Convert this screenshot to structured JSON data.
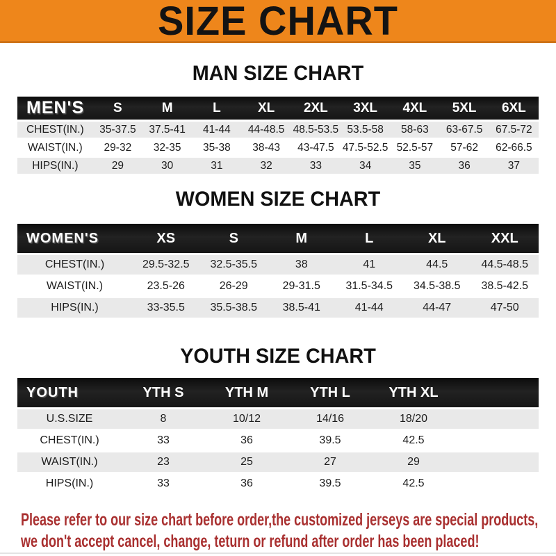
{
  "banner": {
    "title": "SIZE CHART"
  },
  "headings": {
    "men": "MAN SIZE CHART",
    "women": "WOMEN SIZE CHART",
    "youth": "YOUTH SIZE CHART"
  },
  "tables": {
    "men": {
      "group_label": "MEN'S",
      "sizes": [
        "S",
        "M",
        "L",
        "XL",
        "2XL",
        "3XL",
        "4XL",
        "5XL",
        "6XL"
      ],
      "rows": [
        {
          "label": "CHEST(IN.)",
          "values": [
            "35-37.5",
            "37.5-41",
            "41-44",
            "44-48.5",
            "48.5-53.5",
            "53.5-58",
            "58-63",
            "63-67.5",
            "67.5-72"
          ]
        },
        {
          "label": "WAIST(IN.)",
          "values": [
            "29-32",
            "32-35",
            "35-38",
            "38-43",
            "43-47.5",
            "47.5-52.5",
            "52.5-57",
            "57-62",
            "62-66.5"
          ]
        },
        {
          "label": "HIPS(IN.)",
          "values": [
            "29",
            "30",
            "31",
            "32",
            "33",
            "34",
            "35",
            "36",
            "37"
          ]
        }
      ]
    },
    "women": {
      "group_label": "WOMEN'S",
      "sizes": [
        "XS",
        "S",
        "M",
        "L",
        "XL",
        "XXL"
      ],
      "rows": [
        {
          "label": "CHEST(IN.)",
          "values": [
            "29.5-32.5",
            "32.5-35.5",
            "38",
            "41",
            "44.5",
            "44.5-48.5"
          ]
        },
        {
          "label": "WAIST(IN.)",
          "values": [
            "23.5-26",
            "26-29",
            "29-31.5",
            "31.5-34.5",
            "34.5-38.5",
            "38.5-42.5"
          ]
        },
        {
          "label": "HIPS(IN.)",
          "values": [
            "33-35.5",
            "35.5-38.5",
            "38.5-41",
            "41-44",
            "44-47",
            "47-50"
          ]
        }
      ]
    },
    "youth": {
      "group_label": "YOUTH",
      "sizes": [
        "YTH S",
        "YTH M",
        "YTH L",
        "YTH XL"
      ],
      "rows": [
        {
          "label": "U.S.SIZE",
          "values": [
            "8",
            "10/12",
            "14/16",
            "18/20"
          ]
        },
        {
          "label": "CHEST(IN.)",
          "values": [
            "33",
            "36",
            "39.5",
            "42.5"
          ]
        },
        {
          "label": "WAIST(IN.)",
          "values": [
            "23",
            "25",
            "27",
            "29"
          ]
        },
        {
          "label": "HIPS(IN.)",
          "values": [
            "33",
            "36",
            "39.5",
            "42.5"
          ]
        }
      ]
    }
  },
  "note": {
    "line1": "Please refer to our size chart before order,the customized jerseys are special products,",
    "line2": "we don't accept cancel, change, teturn or refund after order has been placed!"
  },
  "colors": {
    "banner_orange": "#ee861b",
    "banner_border": "#cf7318",
    "header_bar_black": "#161616",
    "row_gray": "#e9e9e9",
    "note_red": "#a93030"
  }
}
